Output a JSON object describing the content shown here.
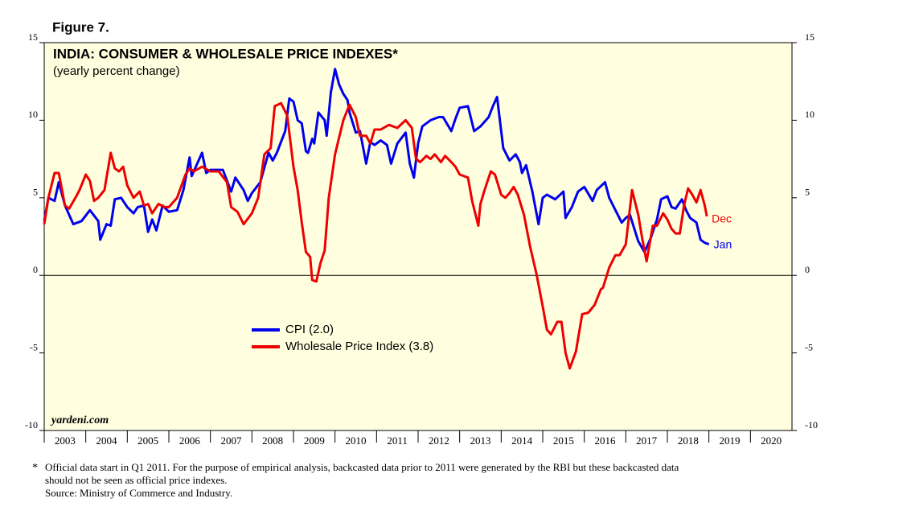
{
  "chart_data": {
    "type": "line",
    "figure_label": "Figure 7.",
    "title": "INDIA: CONSUMER & WHOLESALE PRICE INDEXES*",
    "subtitle": "(yearly percent change)",
    "source_mark": "yardeni.com",
    "xlim": [
      2003,
      2021
    ],
    "xticks": [
      2003,
      2004,
      2005,
      2006,
      2007,
      2008,
      2009,
      2010,
      2011,
      2012,
      2013,
      2014,
      2015,
      2016,
      2017,
      2018,
      2019,
      2020
    ],
    "ylim": [
      -10,
      15
    ],
    "yticks": [
      -10,
      -5,
      0,
      5,
      10,
      15
    ],
    "legend": "center-left",
    "series": [
      {
        "name": "CPI (2.0)",
        "color": "#0000ee",
        "end_label": "Jan",
        "x": [
          2003.0,
          2003.1,
          2003.25,
          2003.35,
          2003.5,
          2003.7,
          2003.9,
          2004.1,
          2004.3,
          2004.35,
          2004.5,
          2004.6,
          2004.7,
          2004.85,
          2005.0,
          2005.15,
          2005.25,
          2005.4,
          2005.5,
          2005.6,
          2005.7,
          2005.85,
          2006.0,
          2006.2,
          2006.35,
          2006.5,
          2006.55,
          2006.8,
          2006.9,
          2007.0,
          2007.3,
          2007.5,
          2007.6,
          2007.8,
          2007.9,
          2008.0,
          2008.2,
          2008.4,
          2008.5,
          2008.6,
          2008.8,
          2008.9,
          2009.0,
          2009.1,
          2009.2,
          2009.3,
          2009.35,
          2009.45,
          2009.5,
          2009.6,
          2009.75,
          2009.8,
          2009.9,
          2010.0,
          2010.1,
          2010.2,
          2010.3,
          2010.35,
          2010.5,
          2010.6,
          2010.75,
          2010.85,
          2010.95,
          2011.1,
          2011.25,
          2011.35,
          2011.5,
          2011.7,
          2011.8,
          2011.9,
          2012.0,
          2012.1,
          2012.3,
          2012.5,
          2012.6,
          2012.8,
          2012.9,
          2013.0,
          2013.2,
          2013.35,
          2013.5,
          2013.7,
          2013.8,
          2013.9,
          2014.05,
          2014.2,
          2014.35,
          2014.45,
          2014.5,
          2014.6,
          2014.75,
          2014.9,
          2015.0,
          2015.1,
          2015.3,
          2015.5,
          2015.55,
          2015.7,
          2015.85,
          2016.0,
          2016.2,
          2016.3,
          2016.5,
          2016.6,
          2016.75,
          2016.9,
          2017.0,
          2017.1,
          2017.3,
          2017.45,
          2017.6,
          2017.75,
          2017.85,
          2018.0,
          2018.1,
          2018.2,
          2018.35,
          2018.45,
          2018.55,
          2018.7,
          2018.8,
          2018.9,
          2019.0
        ],
        "values": [
          3.5,
          5.0,
          4.8,
          6.0,
          4.5,
          3.3,
          3.5,
          4.2,
          3.5,
          2.3,
          3.3,
          3.2,
          4.9,
          5.0,
          4.4,
          4.0,
          4.4,
          4.5,
          2.8,
          3.6,
          2.9,
          4.5,
          4.1,
          4.2,
          5.5,
          7.6,
          6.4,
          7.9,
          6.6,
          6.8,
          6.8,
          5.4,
          6.3,
          5.5,
          4.8,
          5.3,
          6.0,
          7.9,
          7.4,
          7.9,
          9.3,
          11.4,
          11.2,
          10.0,
          9.8,
          8.0,
          7.9,
          8.8,
          8.5,
          10.5,
          10.0,
          9.0,
          11.8,
          13.3,
          12.3,
          11.7,
          11.3,
          10.5,
          9.2,
          9.3,
          7.2,
          8.6,
          8.4,
          8.7,
          8.4,
          7.2,
          8.5,
          9.2,
          7.2,
          6.3,
          8.5,
          9.6,
          10.0,
          10.2,
          10.2,
          9.3,
          10.1,
          10.8,
          10.9,
          9.3,
          9.6,
          10.2,
          10.9,
          11.5,
          8.2,
          7.4,
          7.8,
          7.3,
          6.6,
          7.1,
          5.4,
          3.3,
          5.0,
          5.2,
          4.9,
          5.4,
          3.7,
          4.4,
          5.4,
          5.7,
          4.8,
          5.5,
          6.0,
          5.0,
          4.2,
          3.4,
          3.7,
          3.9,
          2.2,
          1.5,
          2.4,
          3.6,
          4.9,
          5.1,
          4.4,
          4.3,
          4.9,
          4.2,
          3.7,
          3.4,
          2.3,
          2.1,
          2.0
        ]
      },
      {
        "name": "Wholesale Price Index (3.8)",
        "color": "#ee0000",
        "end_label": "Dec",
        "x": [
          2003.0,
          2003.1,
          2003.25,
          2003.35,
          2003.5,
          2003.6,
          2003.75,
          2003.85,
          2004.0,
          2004.1,
          2004.2,
          2004.3,
          2004.45,
          2004.6,
          2004.7,
          2004.8,
          2004.9,
          2005.0,
          2005.15,
          2005.3,
          2005.4,
          2005.5,
          2005.6,
          2005.75,
          2005.9,
          2006.0,
          2006.2,
          2006.4,
          2006.5,
          2006.6,
          2006.8,
          2007.0,
          2007.2,
          2007.4,
          2007.5,
          2007.65,
          2007.8,
          2008.0,
          2008.15,
          2008.3,
          2008.45,
          2008.55,
          2008.7,
          2008.85,
          2009.0,
          2009.1,
          2009.2,
          2009.3,
          2009.4,
          2009.45,
          2009.55,
          2009.65,
          2009.75,
          2009.85,
          2010.0,
          2010.2,
          2010.35,
          2010.5,
          2010.6,
          2010.75,
          2010.85,
          2010.95,
          2011.1,
          2011.3,
          2011.5,
          2011.7,
          2011.85,
          2011.95,
          2012.05,
          2012.2,
          2012.3,
          2012.4,
          2012.55,
          2012.65,
          2012.8,
          2012.9,
          2013.0,
          2013.2,
          2013.3,
          2013.45,
          2013.5,
          2013.6,
          2013.75,
          2013.85,
          2014.0,
          2014.1,
          2014.2,
          2014.3,
          2014.4,
          2014.55,
          2014.7,
          2014.85,
          2015.0,
          2015.1,
          2015.2,
          2015.35,
          2015.45,
          2015.55,
          2015.65,
          2015.8,
          2015.95,
          2016.1,
          2016.25,
          2016.4,
          2016.45,
          2016.6,
          2016.75,
          2016.85,
          2017.0,
          2017.15,
          2017.3,
          2017.4,
          2017.5,
          2017.65,
          2017.75,
          2017.9,
          2018.0,
          2018.1,
          2018.2,
          2018.3,
          2018.4,
          2018.5,
          2018.6,
          2018.7,
          2018.8,
          2018.9,
          2018.95
        ],
        "values": [
          3.3,
          5.0,
          6.6,
          6.6,
          4.5,
          4.3,
          5.0,
          5.5,
          6.5,
          6.1,
          4.8,
          5.0,
          5.5,
          7.9,
          6.9,
          6.7,
          7.0,
          5.8,
          5.0,
          5.4,
          4.5,
          4.6,
          4.0,
          4.6,
          4.4,
          4.4,
          5.0,
          6.5,
          6.9,
          6.7,
          7.0,
          6.7,
          6.7,
          6.0,
          4.4,
          4.1,
          3.3,
          4.0,
          5.0,
          7.8,
          8.2,
          10.9,
          11.1,
          10.3,
          7.0,
          5.5,
          3.4,
          1.5,
          1.2,
          -0.3,
          -0.4,
          0.8,
          1.6,
          5.0,
          7.8,
          10.0,
          11.0,
          10.2,
          9.0,
          9.0,
          8.5,
          9.4,
          9.4,
          9.7,
          9.5,
          10.0,
          9.5,
          7.5,
          7.3,
          7.7,
          7.5,
          7.8,
          7.3,
          7.7,
          7.3,
          7.0,
          6.5,
          6.3,
          4.8,
          3.2,
          4.6,
          5.5,
          6.7,
          6.5,
          5.2,
          5.0,
          5.3,
          5.7,
          5.2,
          3.9,
          1.8,
          0.1,
          -2.0,
          -3.5,
          -3.8,
          -3.0,
          -3.0,
          -5.0,
          -6.0,
          -4.9,
          -2.5,
          -2.4,
          -1.9,
          -0.9,
          -0.8,
          0.5,
          1.3,
          1.3,
          2.0,
          5.5,
          3.9,
          2.3,
          0.9,
          3.2,
          3.2,
          4.0,
          3.6,
          3.0,
          2.7,
          2.7,
          4.5,
          5.6,
          5.2,
          4.7,
          5.5,
          4.5,
          3.8
        ]
      }
    ],
    "note_marker": "*",
    "notes": [
      "Official data start in Q1 2011. For the purpose of empirical analysis, backcasted data prior to 2011 were generated by the RBI but these backcasted data",
      "should not be seen as official price indexes.",
      "Source: Ministry of Commerce and Industry."
    ]
  }
}
